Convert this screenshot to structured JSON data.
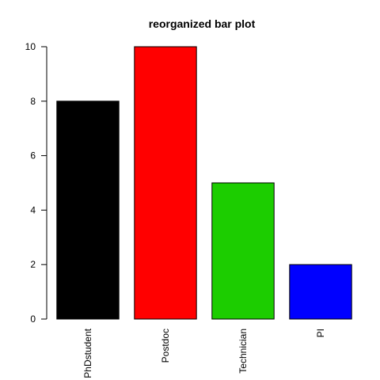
{
  "chart_data": {
    "type": "bar",
    "title": "reorganized bar plot",
    "xlabel": "",
    "ylabel": "",
    "categories": [
      "PhDstudent",
      "Postdoc",
      "Technician",
      "PI"
    ],
    "values": [
      8,
      10,
      5,
      2
    ],
    "colors": [
      "#000000",
      "#ff0000",
      "#1ccd00",
      "#0000ff"
    ],
    "ylim": [
      0,
      10
    ],
    "yticks": [
      0,
      2,
      4,
      6,
      8,
      10
    ],
    "grid": false,
    "legend": "none"
  }
}
